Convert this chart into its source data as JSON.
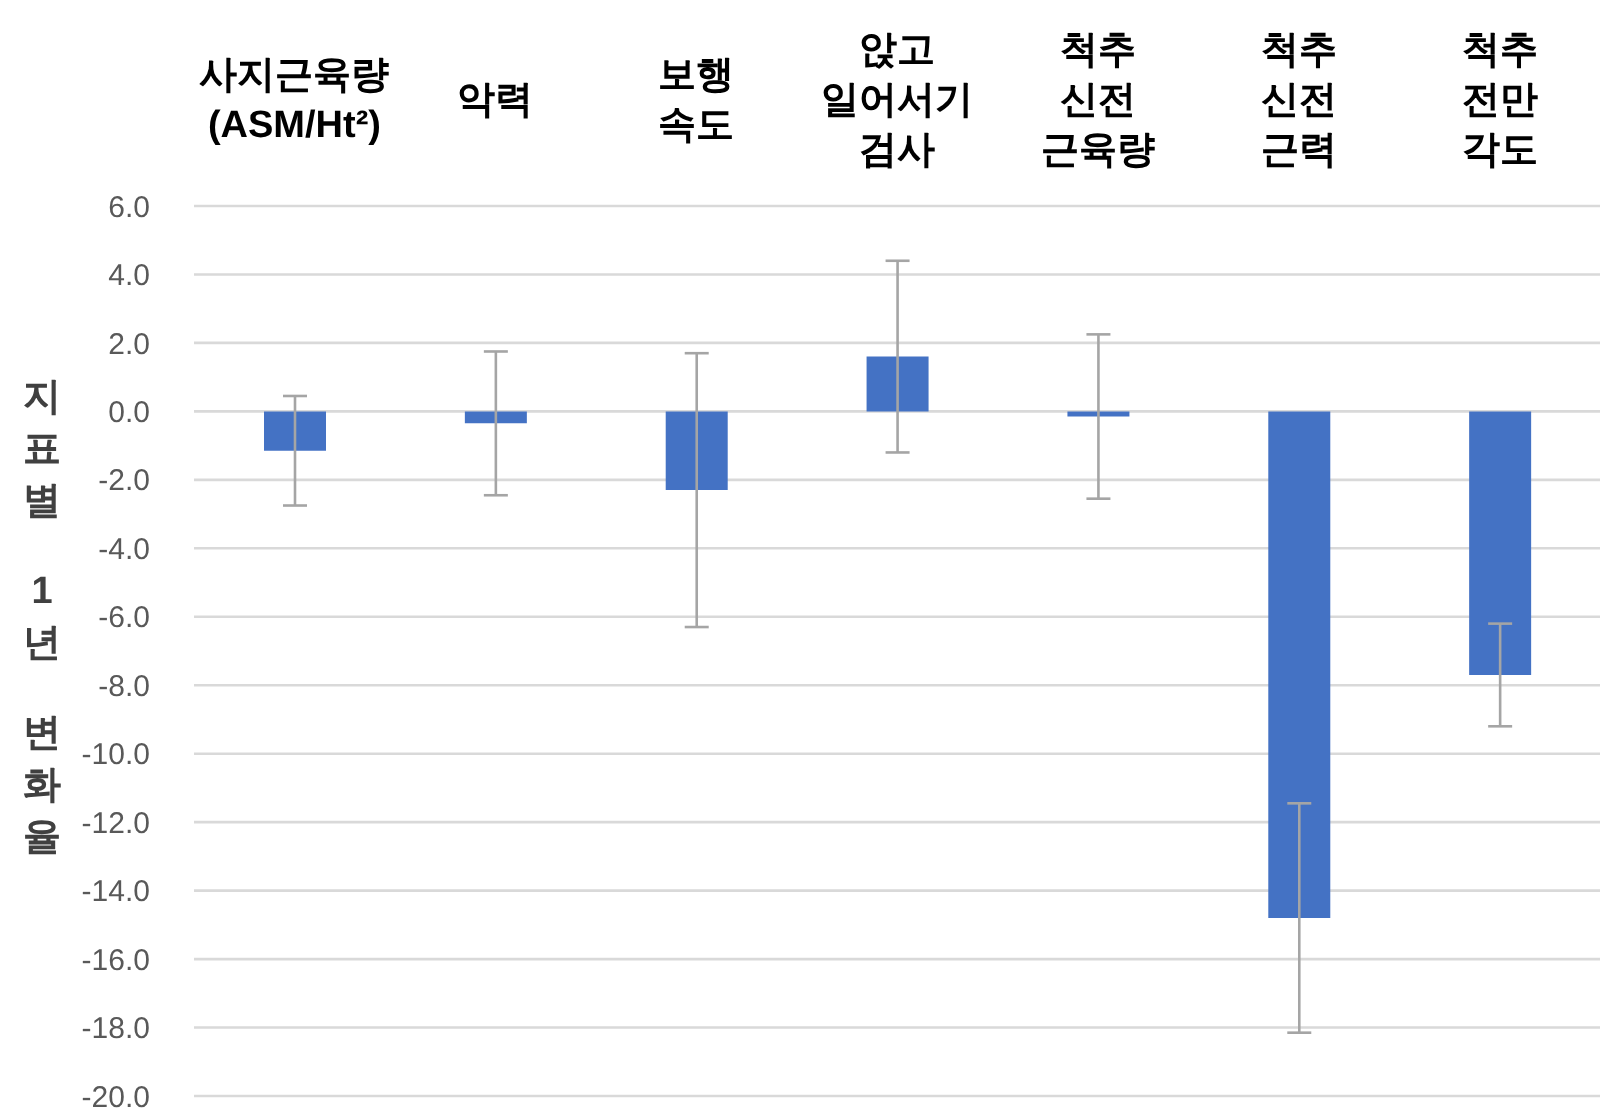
{
  "chart_data": {
    "type": "bar",
    "ylabel": "지표별 1년 변화율",
    "categories": [
      "사지근육량\n(ASM/Ht²)",
      "악력",
      "보행\n속도",
      "앉고\n일어서기\n검사",
      "척추\n신전\n근육량",
      "척추\n신전\n근력",
      "척추\n전만\n각도"
    ],
    "values": [
      -1.15,
      -0.35,
      -2.3,
      1.6,
      -0.15,
      -14.8,
      -7.7
    ],
    "errors": [
      1.6,
      2.1,
      4.0,
      2.8,
      2.4,
      3.35,
      1.5
    ],
    "color": "#4472c4",
    "ylim": [
      -20,
      6
    ],
    "yticks": [
      {
        "value": 6,
        "label": "6.0"
      },
      {
        "value": 4,
        "label": "4.0"
      },
      {
        "value": 2,
        "label": "2.0"
      },
      {
        "value": 0,
        "label": "0.0"
      },
      {
        "value": -2,
        "label": "-2.0"
      },
      {
        "value": -4,
        "label": "-4.0"
      },
      {
        "value": -6,
        "label": "-6.0"
      },
      {
        "value": -8,
        "label": "-8.0"
      },
      {
        "value": -10,
        "label": "-10.0"
      },
      {
        "value": -12,
        "label": "-12.0"
      },
      {
        "value": -14,
        "label": "-14.0"
      },
      {
        "value": -16,
        "label": "-16.0"
      },
      {
        "value": -18,
        "label": "-18.0"
      },
      {
        "value": -20,
        "label": "-20.0"
      }
    ],
    "grid": "y"
  }
}
